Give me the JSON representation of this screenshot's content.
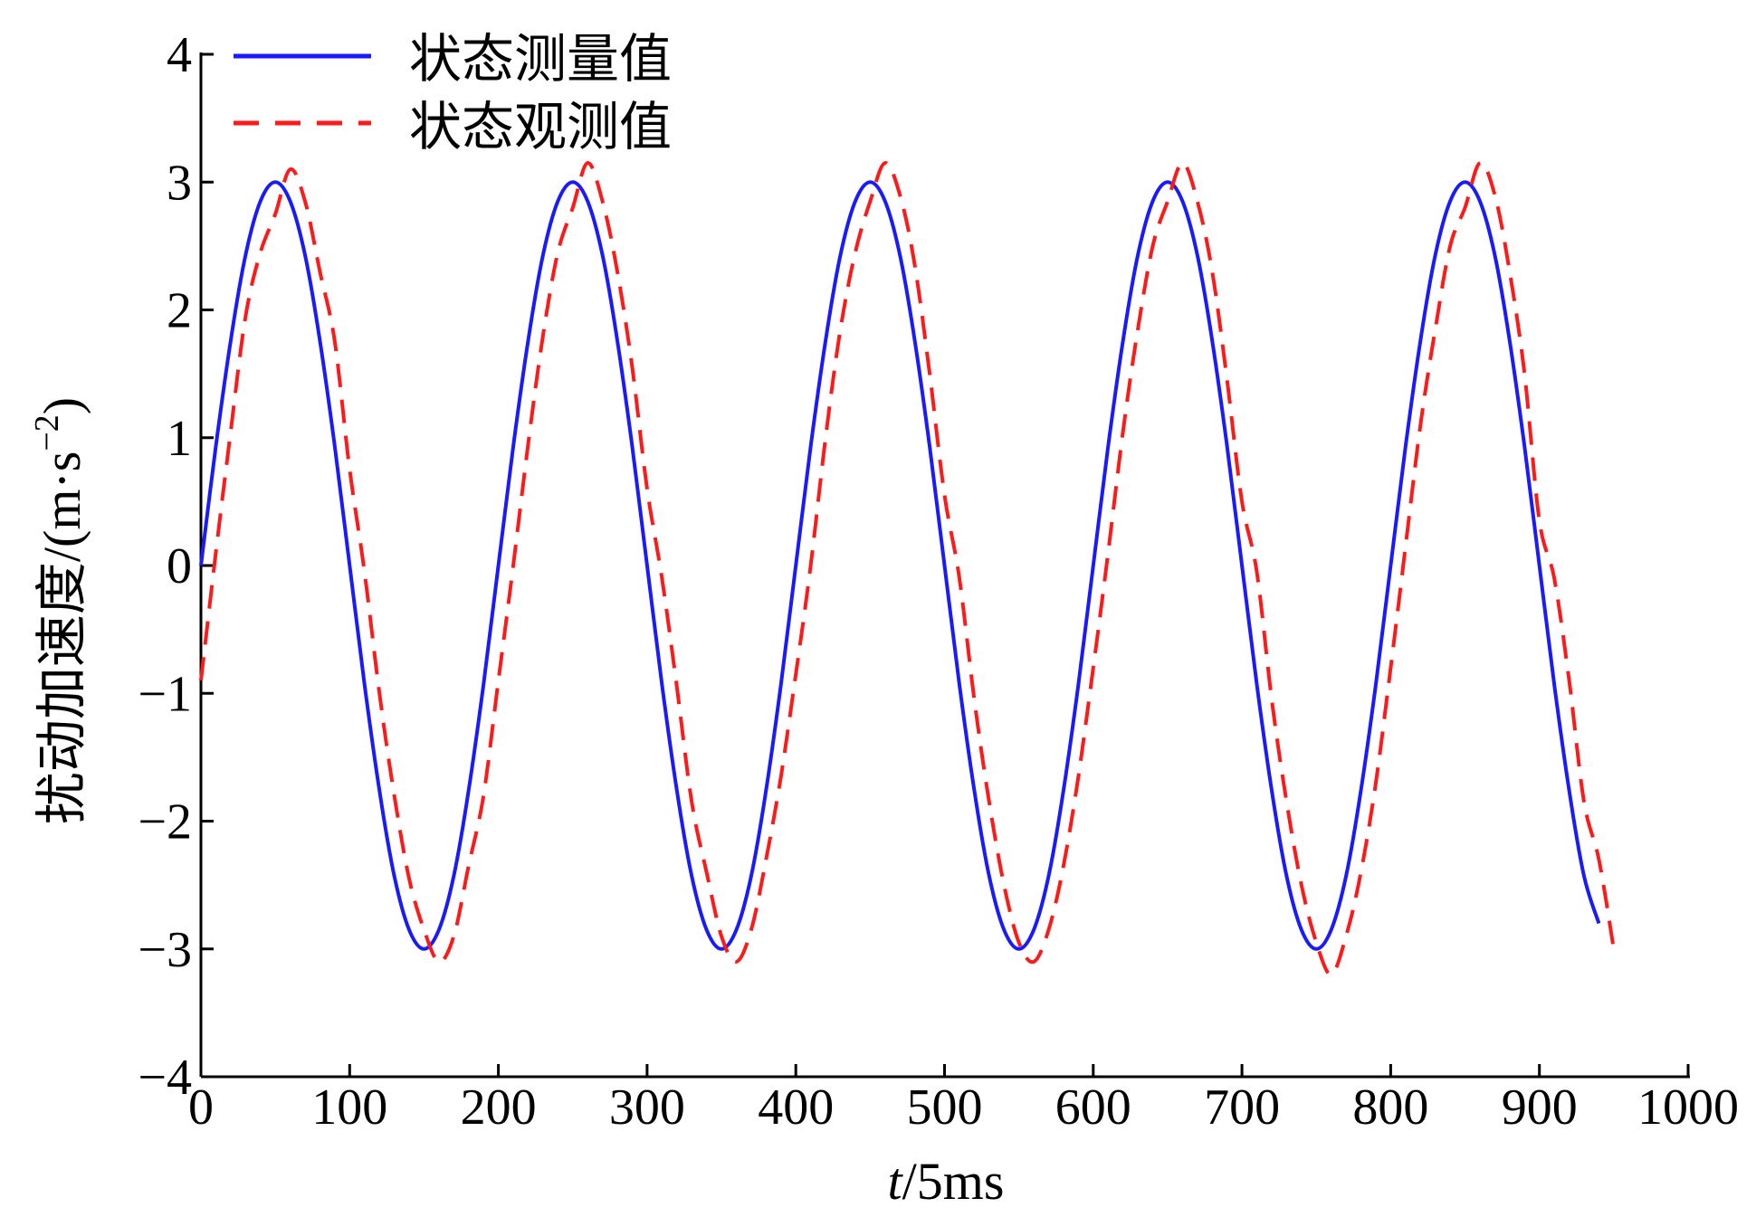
{
  "chart_data": {
    "type": "line",
    "xlabel": {
      "italic": "t",
      "rest": "/5ms"
    },
    "ylabel": {
      "main": "扰动加速度/(m·s",
      "sup": "−2",
      "close": ")"
    },
    "xlim": [
      0,
      1000
    ],
    "ylim": [
      -4,
      4
    ],
    "xticks": [
      "0",
      "100",
      "200",
      "300",
      "400",
      "500",
      "600",
      "700",
      "800",
      "900",
      "1000"
    ],
    "yticks": [
      "4",
      "3",
      "2",
      "1",
      "0",
      "−1",
      "−2",
      "−3",
      "−4"
    ],
    "legend_position": "top-left",
    "grid": false,
    "series": [
      {
        "name": "状态测量值",
        "color": "#1a1aff",
        "style": "solid",
        "x": [
          0,
          10,
          20,
          30,
          40,
          50,
          60,
          70,
          80,
          90,
          100,
          110,
          120,
          130,
          140,
          150,
          160,
          170,
          180,
          190,
          200,
          210,
          220,
          230,
          240,
          250,
          260,
          270,
          280,
          290,
          300,
          310,
          320,
          330,
          340,
          350,
          360,
          370,
          380,
          390,
          400,
          410,
          420,
          430,
          440,
          450,
          460,
          470,
          480,
          490,
          500,
          510,
          520,
          530,
          540,
          550,
          560,
          570,
          580,
          590,
          600,
          610,
          620,
          630,
          640,
          650,
          660,
          670,
          680,
          690,
          700,
          710,
          720,
          730,
          740,
          750,
          760,
          770,
          780,
          790,
          800,
          810,
          820,
          830,
          840,
          850,
          860,
          870,
          880,
          890,
          900,
          910,
          920,
          930,
          940
        ],
        "y": [
          0,
          0.93,
          1.76,
          2.43,
          2.85,
          3.0,
          2.85,
          2.43,
          1.76,
          0.93,
          0,
          -0.93,
          -1.76,
          -2.43,
          -2.85,
          -3.0,
          -2.85,
          -2.43,
          -1.76,
          -0.93,
          0,
          0.93,
          1.76,
          2.43,
          2.85,
          3.0,
          2.85,
          2.43,
          1.76,
          0.93,
          0,
          -0.93,
          -1.76,
          -2.43,
          -2.85,
          -3.0,
          -2.85,
          -2.43,
          -1.76,
          -0.93,
          0,
          0.93,
          1.76,
          2.43,
          2.85,
          3.0,
          2.85,
          2.43,
          1.76,
          0.93,
          0,
          -0.93,
          -1.76,
          -2.43,
          -2.85,
          -3.0,
          -2.85,
          -2.43,
          -1.76,
          -0.93,
          0,
          0.93,
          1.76,
          2.43,
          2.85,
          3.0,
          2.85,
          2.43,
          1.76,
          0.93,
          0,
          -0.93,
          -1.76,
          -2.43,
          -2.85,
          -3.0,
          -2.85,
          -2.43,
          -1.76,
          -0.93,
          0,
          0.93,
          1.76,
          2.43,
          2.85,
          3.0,
          2.85,
          2.43,
          1.76,
          0.93,
          0,
          -0.93,
          -1.76,
          -2.43,
          -2.8
        ]
      },
      {
        "name": "状态观测值",
        "color": "#ff1a1a",
        "style": "dashed",
        "x": [
          0,
          10,
          20,
          30,
          40,
          50,
          60,
          70,
          80,
          90,
          100,
          110,
          120,
          130,
          140,
          150,
          160,
          170,
          180,
          190,
          200,
          210,
          220,
          230,
          240,
          250,
          260,
          270,
          280,
          290,
          300,
          310,
          320,
          330,
          340,
          350,
          360,
          370,
          380,
          390,
          400,
          410,
          420,
          430,
          440,
          450,
          460,
          470,
          480,
          490,
          500,
          510,
          520,
          530,
          540,
          550,
          560,
          570,
          580,
          590,
          600,
          610,
          620,
          630,
          640,
          650,
          660,
          670,
          680,
          690,
          700,
          710,
          720,
          730,
          740,
          750,
          760,
          770,
          780,
          790,
          800,
          810,
          820,
          830,
          840,
          850,
          860,
          870,
          880,
          890,
          900,
          910,
          920,
          930,
          940,
          950
        ],
        "y": [
          -0.9,
          0.1,
          1.05,
          1.95,
          2.45,
          2.75,
          3.1,
          2.85,
          2.3,
          1.75,
          0.75,
          -0.05,
          -1.0,
          -1.8,
          -2.45,
          -2.85,
          -3.1,
          -2.9,
          -2.35,
          -1.8,
          -0.9,
          0.0,
          0.95,
          1.8,
          2.45,
          2.8,
          3.15,
          2.85,
          2.3,
          1.55,
          0.6,
          -0.1,
          -0.95,
          -1.85,
          -2.4,
          -2.9,
          -3.1,
          -2.85,
          -2.3,
          -1.65,
          -0.85,
          0.0,
          1.0,
          1.85,
          2.45,
          2.85,
          3.15,
          2.9,
          2.35,
          1.5,
          0.55,
          -0.1,
          -1.05,
          -1.85,
          -2.5,
          -2.95,
          -3.1,
          -2.85,
          -2.35,
          -1.65,
          -0.8,
          0.1,
          1.05,
          1.85,
          2.5,
          2.85,
          3.15,
          2.85,
          2.3,
          1.45,
          0.5,
          -0.05,
          -1.05,
          -1.85,
          -2.5,
          -2.95,
          -3.2,
          -2.9,
          -2.4,
          -1.7,
          -0.8,
          0.15,
          1.1,
          1.85,
          2.5,
          2.8,
          3.15,
          2.9,
          2.3,
          1.5,
          0.35,
          -0.1,
          -0.9,
          -1.85,
          -2.3,
          -3.0
        ]
      }
    ]
  }
}
